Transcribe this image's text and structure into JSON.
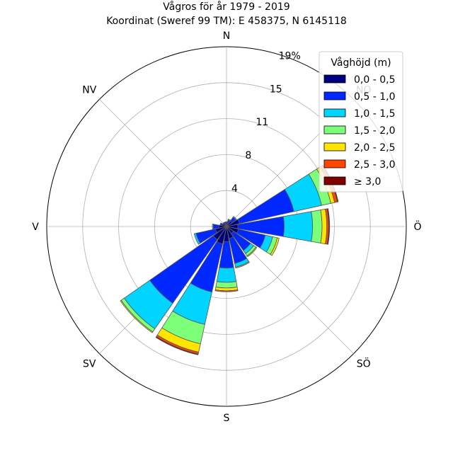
{
  "chart_data": {
    "type": "windrose",
    "title": "Vågros för år 1979 - 2019",
    "subtitle": "Koordinat (Sweref 99 TM): E 458375, N 6145118",
    "compass_labels": [
      {
        "label": "N",
        "angle": 0
      },
      {
        "label": "NO",
        "angle": 45
      },
      {
        "label": "Ö",
        "angle": 90
      },
      {
        "label": "SÖ",
        "angle": 135
      },
      {
        "label": "S",
        "angle": 180
      },
      {
        "label": "SV",
        "angle": 225
      },
      {
        "label": "V",
        "angle": 270
      },
      {
        "label": "NV",
        "angle": 315
      }
    ],
    "radial_ticks": [
      "4",
      "8",
      "11",
      "15",
      "19%"
    ],
    "radial_tick_values": [
      3.8,
      7.6,
      11.4,
      15.2,
      19.0
    ],
    "rmax": 19.0,
    "legend": {
      "title": "Våghöjd (m)",
      "placement": "top-right",
      "entries": [
        {
          "label": "0,0 - 0,5",
          "color": "#00007f"
        },
        {
          "label": "0,5 - 1,0",
          "color": "#0028ff"
        },
        {
          "label": "1,0 - 1,5",
          "color": "#00d4ff"
        },
        {
          "label": "1,5 - 2,0",
          "color": "#7dff7a"
        },
        {
          "label": "2,0 - 2,5",
          "color": "#ffe500"
        },
        {
          "label": "2,5 - 3,0",
          "color": "#ff4600"
        },
        {
          "label": "≥ 3,0",
          "color": "#7f0000"
        }
      ]
    },
    "sector_width_deg": 20,
    "directions": [
      0,
      22.5,
      45,
      67.5,
      90,
      112.5,
      135,
      157.5,
      180,
      202.5,
      225,
      247.5,
      270,
      292.5,
      315,
      337.5
    ],
    "series": [
      {
        "name": "0,0 - 0,5",
        "values": [
          0.3,
          0.4,
          0.7,
          1.4,
          1.2,
          1.3,
          0.9,
          1.3,
          1.6,
          1.9,
          1.7,
          1.2,
          0.8,
          0.5,
          0.4,
          0.3
        ]
      },
      {
        "name": "0,5 - 1,0",
        "values": [
          0.2,
          0.3,
          0.5,
          5.9,
          4.9,
          2.9,
          2.2,
          2.7,
          2.8,
          5.2,
          8.2,
          2.1,
          0.6,
          0.2,
          0.1,
          0.2
        ]
      },
      {
        "name": "1,0 - 1,5",
        "values": [
          0.0,
          0.1,
          0.1,
          3.0,
          3.0,
          0.8,
          0.4,
          0.4,
          1.5,
          3.5,
          3.3,
          0.2,
          0.1,
          0.0,
          0.0,
          0.0
        ]
      },
      {
        "name": "1,5 - 2,0",
        "values": [
          0.0,
          0.0,
          0.0,
          1.0,
          1.0,
          0.5,
          0.3,
          0.1,
          0.6,
          2.1,
          0.4,
          0.0,
          0.0,
          0.0,
          0.0,
          0.0
        ]
      },
      {
        "name": "2,0 - 2,5",
        "values": [
          0.0,
          0.0,
          0.0,
          0.4,
          0.5,
          0.2,
          0.1,
          0.0,
          0.3,
          0.9,
          0.1,
          0.0,
          0.0,
          0.0,
          0.0,
          0.0
        ]
      },
      {
        "name": "2,5 - 3,0",
        "values": [
          0.0,
          0.0,
          0.0,
          0.3,
          0.2,
          0.0,
          0.0,
          0.0,
          0.1,
          0.2,
          0.0,
          0.0,
          0.0,
          0.0,
          0.0,
          0.0
        ]
      },
      {
        "name": "≥ 3,0",
        "values": [
          0.0,
          0.0,
          0.0,
          0.1,
          0.1,
          0.0,
          0.0,
          0.0,
          0.0,
          0.1,
          0.0,
          0.0,
          0.0,
          0.0,
          0.0,
          0.0
        ]
      }
    ],
    "grid": true
  }
}
